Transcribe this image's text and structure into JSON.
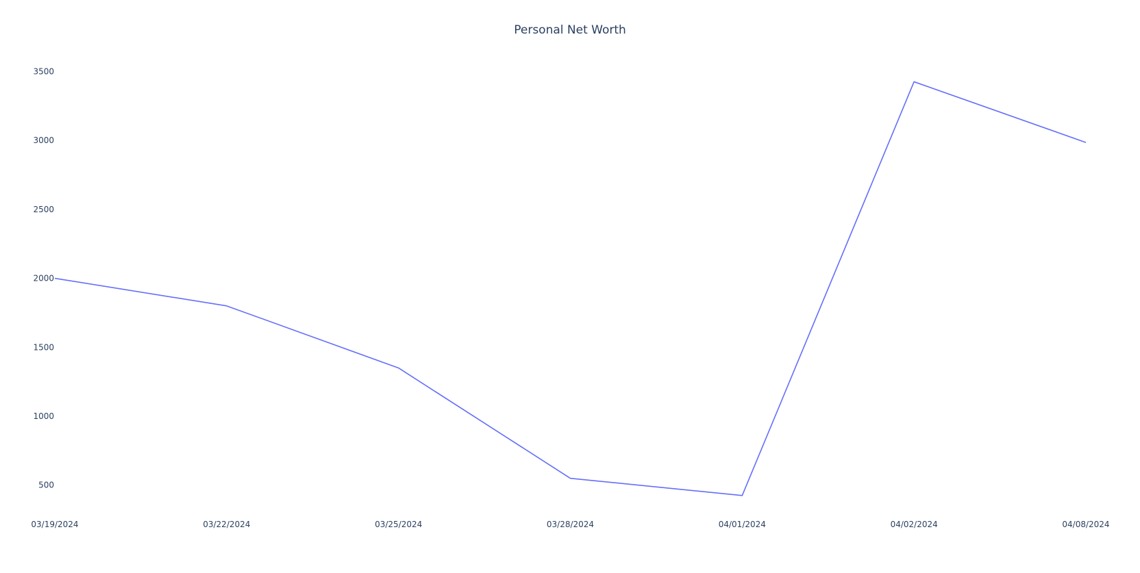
{
  "chart_data": {
    "type": "line",
    "title": "Personal Net Worth",
    "xlabel": "",
    "ylabel": "",
    "x": [
      "03/19/2024",
      "03/22/2024",
      "03/25/2024",
      "03/28/2024",
      "04/01/2024",
      "04/02/2024",
      "04/08/2024"
    ],
    "y_ticks": [
      500,
      1000,
      1500,
      2000,
      2500,
      3000,
      3500
    ],
    "ylim": [
      320,
      3720
    ],
    "grid": false,
    "series": [
      {
        "values": [
          2000,
          1800,
          1350,
          550,
          425,
          3425,
          2985
        ]
      }
    ]
  },
  "colors": {
    "line": "#636efa",
    "text": "#2a3f5f",
    "background": "#ffffff"
  }
}
